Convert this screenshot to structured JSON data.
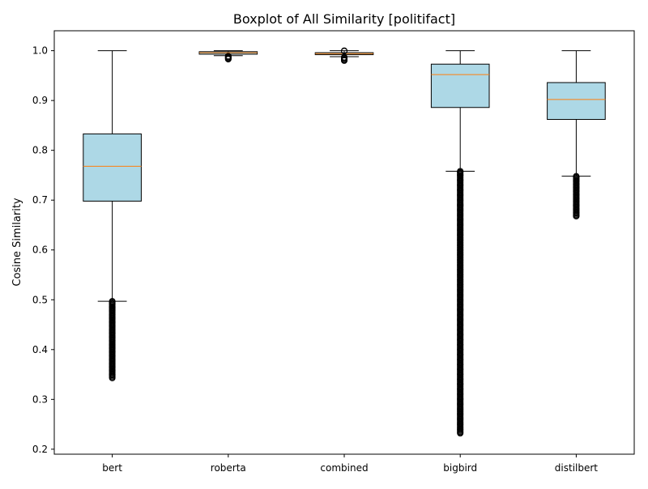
{
  "chart_data": {
    "type": "boxplot",
    "title": "Boxplot of All Similarity [politifact]",
    "xlabel": "",
    "ylabel": "Cosine Similarity",
    "ylim": [
      0.19,
      1.04
    ],
    "yticks": [
      0.2,
      0.3,
      0.4,
      0.5,
      0.6,
      0.7,
      0.8,
      0.9,
      1.0
    ],
    "ytick_labels": [
      "0.2",
      "0.3",
      "0.4",
      "0.5",
      "0.6",
      "0.7",
      "0.8",
      "0.9",
      "1.0"
    ],
    "grid": false,
    "box_color": "#add8e6",
    "median_color": "#ff7f0e",
    "categories": [
      "bert",
      "roberta",
      "combined",
      "bigbird",
      "distilbert"
    ],
    "boxes": [
      {
        "label": "bert",
        "whisker_low": 0.497,
        "q1": 0.698,
        "median": 0.768,
        "q3": 0.833,
        "whisker_high": 1.0,
        "outliers_low_range": [
          0.343,
          0.497
        ],
        "outliers": [
          0.343,
          0.35,
          0.358,
          0.365,
          0.372,
          0.38,
          0.388,
          0.395,
          0.403,
          0.41,
          0.418,
          0.425,
          0.433,
          0.44,
          0.448,
          0.455,
          0.463,
          0.47,
          0.478,
          0.485,
          0.492,
          0.496
        ]
      },
      {
        "label": "roberta",
        "whisker_low": 0.99,
        "q1": 0.993,
        "median": 0.996,
        "q3": 0.998,
        "whisker_high": 1.0,
        "outliers_low_range": [
          0.983,
          0.989
        ],
        "outliers": [
          0.983,
          0.985,
          0.987,
          0.989
        ]
      },
      {
        "label": "combined",
        "whisker_low": 0.988,
        "q1": 0.992,
        "median": 0.994,
        "q3": 0.996,
        "whisker_high": 1.0,
        "outliers_low_range": [
          0.98,
          0.987
        ],
        "outliers": [
          0.98,
          0.983,
          0.986,
          1.0,
          0.999
        ]
      },
      {
        "label": "bigbird",
        "whisker_low": 0.758,
        "q1": 0.886,
        "median": 0.952,
        "q3": 0.973,
        "whisker_high": 1.0,
        "outliers_low_range": [
          0.232,
          0.758
        ],
        "outliers": [
          0.232,
          0.24,
          0.25,
          0.26,
          0.27,
          0.28,
          0.29,
          0.3,
          0.31,
          0.32,
          0.33,
          0.34,
          0.35,
          0.36,
          0.37,
          0.38,
          0.39,
          0.4,
          0.41,
          0.42,
          0.43,
          0.44,
          0.45,
          0.46,
          0.47,
          0.48,
          0.49,
          0.5,
          0.51,
          0.52,
          0.53,
          0.54,
          0.55,
          0.56,
          0.57,
          0.58,
          0.59,
          0.6,
          0.61,
          0.62,
          0.63,
          0.64,
          0.65,
          0.66,
          0.67,
          0.68,
          0.69,
          0.7,
          0.71,
          0.72,
          0.73,
          0.74,
          0.75,
          0.756
        ]
      },
      {
        "label": "distilbert",
        "whisker_low": 0.748,
        "q1": 0.862,
        "median": 0.902,
        "q3": 0.936,
        "whisker_high": 1.0,
        "outliers_low_range": [
          0.668,
          0.748
        ],
        "outliers": [
          0.668,
          0.675,
          0.682,
          0.69,
          0.697,
          0.704,
          0.711,
          0.718,
          0.725,
          0.732,
          0.739,
          0.746
        ]
      }
    ]
  }
}
